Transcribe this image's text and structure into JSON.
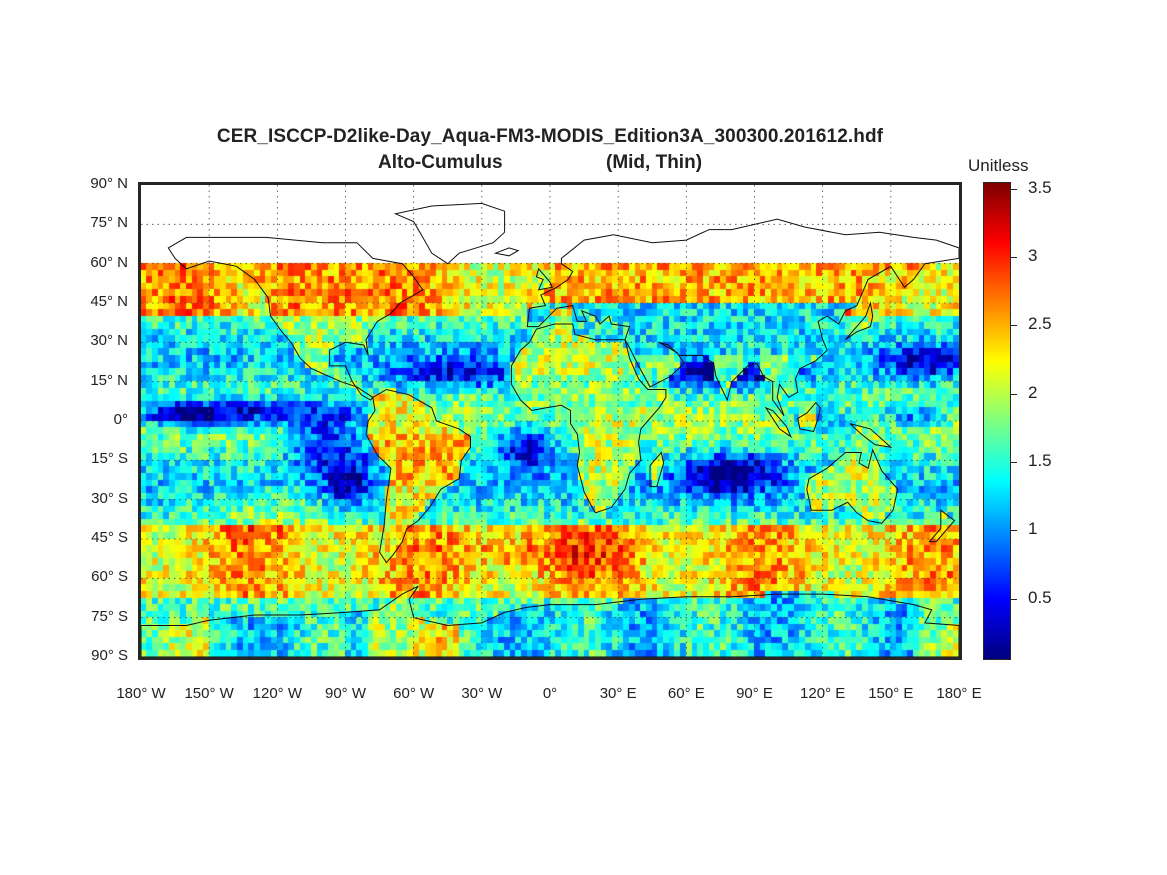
{
  "title": {
    "line1": "CER_ISCCP-D2like-Day_Aqua-FM3-MODIS_Edition3A_300300.201612.hdf",
    "line2_left": "Alto-Cumulus",
    "line2_right": "(Mid, Thin)"
  },
  "colorbar": {
    "unit_label": "Unitless",
    "min": 0.05,
    "max": 3.55,
    "ticks": [
      {
        "value": 0.5,
        "label": "0.5"
      },
      {
        "value": 1,
        "label": "1"
      },
      {
        "value": 1.5,
        "label": "1.5"
      },
      {
        "value": 2,
        "label": "2"
      },
      {
        "value": 2.5,
        "label": "2.5"
      },
      {
        "value": 3,
        "label": "3"
      },
      {
        "value": 3.5,
        "label": "3.5"
      }
    ],
    "colormap": "jet"
  },
  "map": {
    "projection": "equirectangular",
    "lon_range": [
      -180,
      180
    ],
    "lat_range": [
      -90,
      90
    ],
    "data_lat_max": 60,
    "grid": "dotted",
    "lat_labels": [
      "90° N",
      "75° N",
      "60° N",
      "45° N",
      "30° N",
      "15° N",
      "0°",
      "15° S",
      "30° S",
      "45° S",
      "60° S",
      "75° S",
      "90° S"
    ],
    "lon_labels": [
      "180° W",
      "150° W",
      "120° W",
      "90° W",
      "60° W",
      "30° W",
      "0°",
      "30° E",
      "60° E",
      "90° E",
      "120° E",
      "150° E",
      "180° E"
    ],
    "lat_values": [
      90,
      75,
      60,
      45,
      30,
      15,
      0,
      -15,
      -30,
      -45,
      -60,
      -75,
      -90
    ],
    "lon_values": [
      -180,
      -150,
      -120,
      -90,
      -60,
      -30,
      0,
      30,
      60,
      90,
      120,
      150,
      180
    ]
  },
  "chart_data": {
    "type": "heatmap",
    "title": "CER_ISCCP-D2like-Day_Aqua-FM3-MODIS_Edition3A_300300.201612.hdf",
    "subtitle": "Alto-Cumulus (Mid, Thin)",
    "xlabel": "",
    "ylabel": "",
    "zlabel": "Unitless",
    "xlim": [
      -180,
      180
    ],
    "ylim": [
      -90,
      90
    ],
    "zlim": [
      0.05,
      3.55
    ],
    "regional_values": [
      {
        "region": "Northern mid-latitudes 45N-60N",
        "value": 2.6
      },
      {
        "region": "ITCZ Pacific near equator",
        "value": 0.5
      },
      {
        "region": "Eastern Pacific off South America 15S-30S",
        "value": 0.6
      },
      {
        "region": "South Atlantic 15S",
        "value": 0.5
      },
      {
        "region": "Indian Ocean 15S-30S",
        "value": 0.5
      },
      {
        "region": "Arabian Sea / North Indian Ocean 20N",
        "value": 0.4
      },
      {
        "region": "Southern Ocean 45S-65S",
        "value": 2.4
      },
      {
        "region": "Antarctica",
        "value": 1.4
      },
      {
        "region": "Africa",
        "value": 2.0
      },
      {
        "region": "South America",
        "value": 2.2
      },
      {
        "region": "Australia",
        "value": 2.0
      }
    ]
  }
}
